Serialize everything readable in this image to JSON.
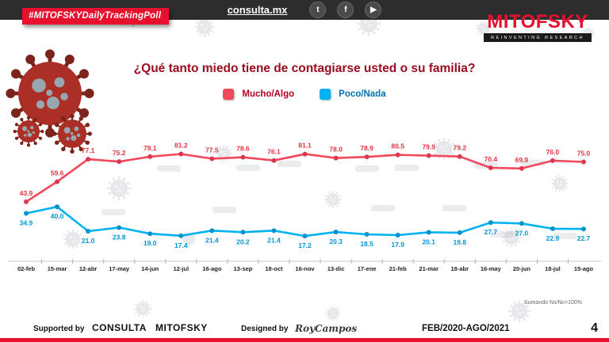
{
  "header": {
    "badge": "#MITOFSKYDailyTrackingPoll",
    "site": "consulta.mx",
    "icons": {
      "twitter": "t",
      "facebook": "f",
      "youtube": "▶"
    },
    "logo": "MITOFSKY",
    "logo_tagline": "REINVENTING RESEARCH"
  },
  "chart_data": {
    "type": "line",
    "title": "¿Qué tanto miedo tiene de contagiarse usted o su familia?",
    "categories": [
      "02-feb",
      "15-mar",
      "12-abr",
      "17-may",
      "14-jun",
      "12-jul",
      "16-ago",
      "13-sep",
      "18-oct",
      "16-nov",
      "13-dic",
      "17-ene",
      "21-feb",
      "21-mar",
      "18-abr",
      "16-may",
      "20-jun",
      "18-jul",
      "15-ago"
    ],
    "series": [
      {
        "name": "Mucho/Algo",
        "color": "#f2485c",
        "marker_color": "#d93850",
        "label_color": "#e8323f",
        "values": [
          43.9,
          59.6,
          77.1,
          75.2,
          79.1,
          81.2,
          77.5,
          78.6,
          76.1,
          81.1,
          78.0,
          78.9,
          80.5,
          79.9,
          79.2,
          70.4,
          69.9,
          76.0,
          75.0
        ]
      },
      {
        "name": "Poco/Nada",
        "color": "#00b2f1",
        "marker_color": "#0092cc",
        "label_color": "#0095d8",
        "values": [
          34.9,
          40.0,
          21.0,
          23.8,
          19.0,
          17.4,
          21.4,
          20.2,
          21.4,
          17.2,
          20.3,
          18.5,
          17.9,
          20.1,
          19.8,
          27.7,
          27.0,
          22.9,
          22.7
        ]
      }
    ],
    "ylim": [
      0,
      100
    ],
    "grid": false,
    "legend_position": "top"
  },
  "footnote": "Sumando Ns/Nc=100%",
  "footer": {
    "supported_by_label": "Supported by",
    "consulta": "CONSULTA",
    "mitofsky": "MITOFSKY",
    "designed_by_label": "Designed by",
    "designed_by_name": "RoyCampos",
    "period": "FEB/2020-AGO/2021",
    "page_number": "4"
  },
  "colors": {
    "accent_red": "#e8112d",
    "title_red": "#9a0d20",
    "legend_red_text": "#b4001e",
    "legend_blue_text": "#0072b0",
    "topbar_bg": "#2d2d2d"
  }
}
